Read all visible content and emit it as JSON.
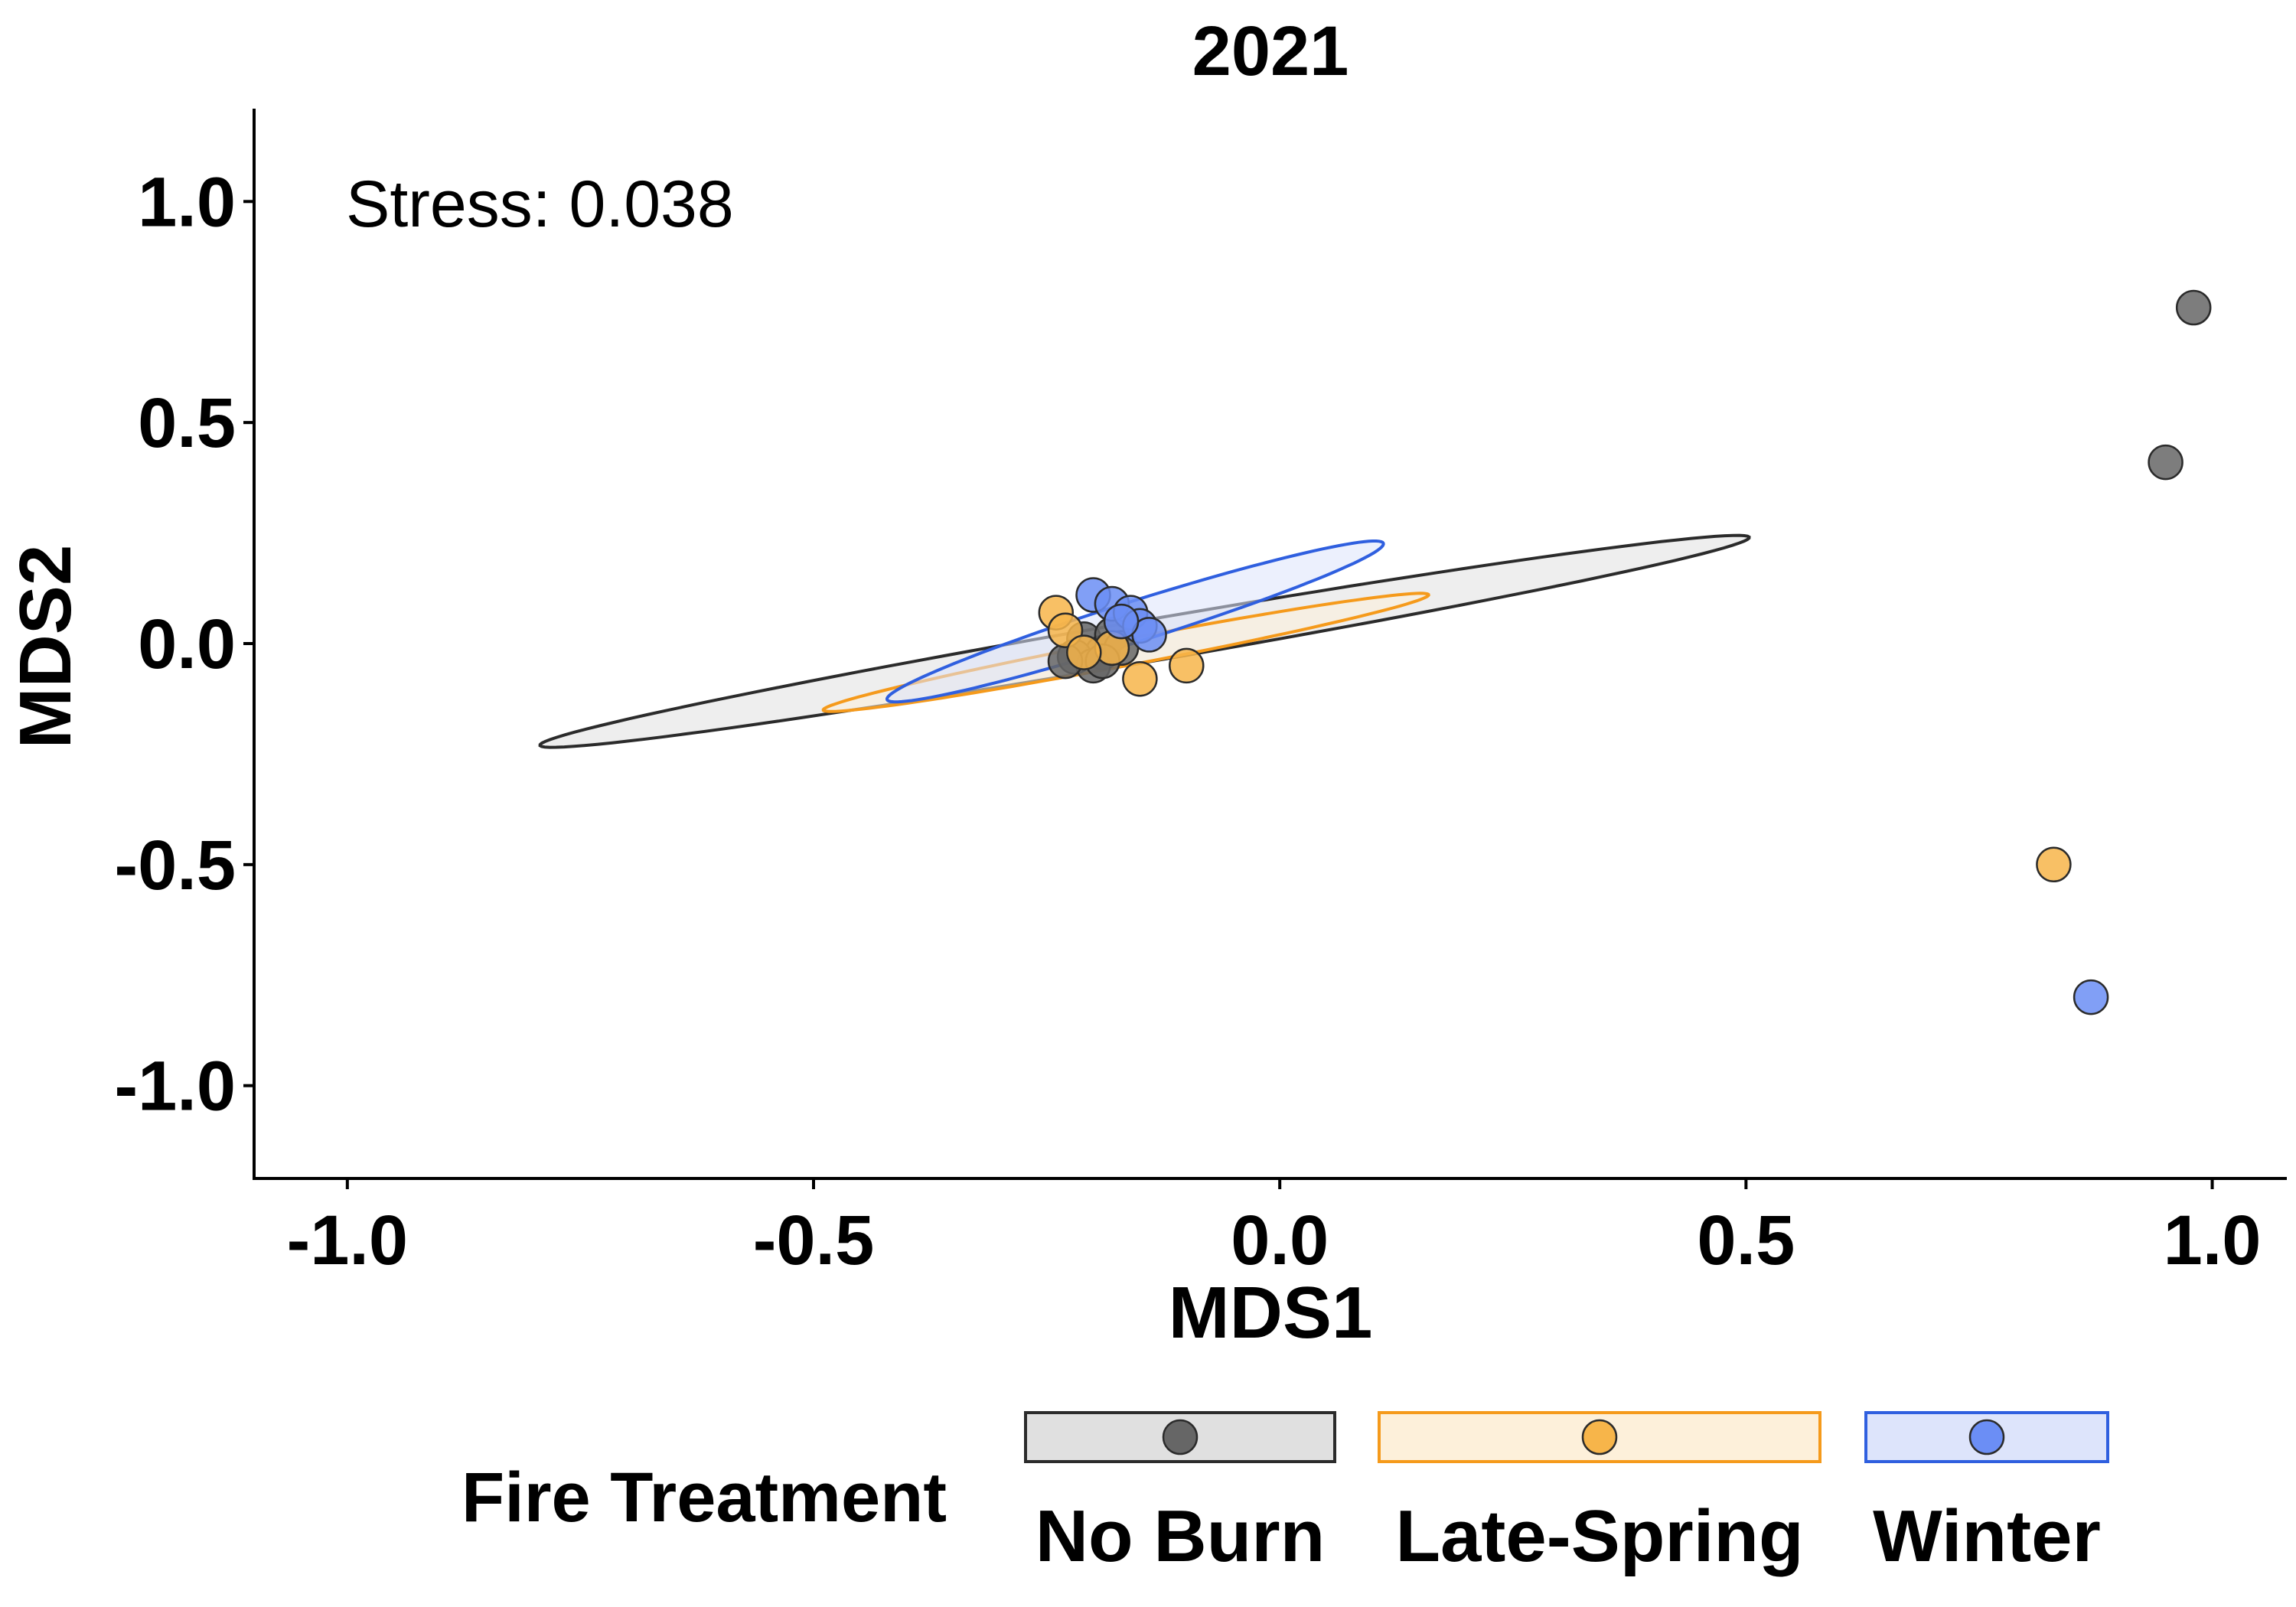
{
  "chart_data": {
    "type": "scatter",
    "title": "2021",
    "xlabel": "MDS1",
    "ylabel": "MDS2",
    "xlim": [
      -1.1,
      1.08
    ],
    "ylim": [
      -1.21,
      1.21
    ],
    "xticks": [
      -1.0,
      -0.5,
      0.0,
      0.5,
      1.0
    ],
    "xtick_labels": [
      "-1.0",
      "-0.5",
      "0.0",
      "0.5",
      "1.0"
    ],
    "yticks": [
      1.0,
      0.5,
      0.0,
      -0.5,
      -1.0
    ],
    "ytick_labels": [
      "1.0",
      "0.5",
      "0.0",
      "-0.5",
      "-1.0"
    ],
    "annotation": "Stress: 0.038",
    "grid": false,
    "legend": {
      "title": "Fire Treatment",
      "position": "bottom"
    },
    "series": [
      {
        "name": "No Burn",
        "color": "#666666",
        "edge_color": "#2b2b2b",
        "ellipse_fill": "#e0e0e0",
        "ellipse_stroke": "#2b2b2b",
        "ellipse": {
          "cx": -0.145,
          "cy": 0.005,
          "rx": 0.69,
          "ry": 0.045,
          "angle_deg": 20.0
        },
        "points": [
          {
            "x": 0.98,
            "y": 0.76
          },
          {
            "x": 0.95,
            "y": 0.41
          },
          {
            "x": -0.21,
            "y": 0.01
          },
          {
            "x": -0.19,
            "y": -0.02
          },
          {
            "x": -0.22,
            "y": -0.03
          },
          {
            "x": -0.2,
            "y": -0.05
          },
          {
            "x": -0.18,
            "y": 0.02
          },
          {
            "x": -0.23,
            "y": -0.04
          },
          {
            "x": -0.17,
            "y": -0.01
          },
          {
            "x": -0.19,
            "y": -0.04
          }
        ]
      },
      {
        "name": "Late-Spring",
        "color": "#f7b54a",
        "edge_color": "#2b2b2b",
        "ellipse_fill": "#fdf0da",
        "ellipse_stroke": "#f59a1b",
        "ellipse": {
          "cx": -0.165,
          "cy": -0.02,
          "rx": 0.35,
          "ry": 0.028,
          "angle_deg": 22.0
        },
        "points": [
          {
            "x": 0.83,
            "y": -0.5
          },
          {
            "x": -0.24,
            "y": 0.07
          },
          {
            "x": -0.23,
            "y": 0.03
          },
          {
            "x": -0.1,
            "y": -0.05
          },
          {
            "x": -0.15,
            "y": -0.08
          },
          {
            "x": -0.18,
            "y": -0.01
          },
          {
            "x": -0.21,
            "y": -0.02
          }
        ]
      },
      {
        "name": "Winter",
        "color": "#6b8ef5",
        "edge_color": "#2b2b2b",
        "ellipse_fill": "#dde4fb",
        "ellipse_stroke": "#2f5fdf",
        "ellipse": {
          "cx": -0.155,
          "cy": 0.05,
          "rx": 0.32,
          "ry": 0.04,
          "angle_deg": 34.0
        },
        "points": [
          {
            "x": 0.87,
            "y": -0.8
          },
          {
            "x": -0.2,
            "y": 0.11
          },
          {
            "x": -0.18,
            "y": 0.09
          },
          {
            "x": -0.16,
            "y": 0.07
          },
          {
            "x": -0.15,
            "y": 0.04
          },
          {
            "x": -0.14,
            "y": 0.02
          },
          {
            "x": -0.17,
            "y": 0.05
          }
        ]
      }
    ]
  }
}
